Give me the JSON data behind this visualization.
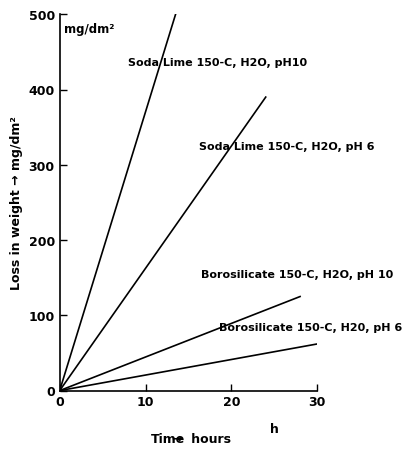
{
  "ylabel": "Loss in weight → mg/dm²",
  "ylabel_unit_label": "mg/dm²",
  "xlabel_h": "h",
  "xlim": [
    0,
    30
  ],
  "ylim": [
    0,
    500
  ],
  "xticks": [
    0,
    10,
    20,
    30
  ],
  "yticks": [
    0,
    100,
    200,
    300,
    400,
    500
  ],
  "lines": [
    {
      "x": [
        0,
        13.5
      ],
      "y": [
        0,
        500
      ],
      "ann_x": 8.0,
      "ann_y": 430,
      "ann_text": "Soda Lime 150-C, H2O, pH10"
    },
    {
      "x": [
        0,
        24.0
      ],
      "y": [
        0,
        390
      ],
      "ann_x": 16.2,
      "ann_y": 318,
      "ann_text": "Soda Lime 150-C, H2O, pH 6"
    },
    {
      "x": [
        0,
        28.0
      ],
      "y": [
        0,
        125
      ],
      "ann_x": 16.5,
      "ann_y": 148,
      "ann_text": "Borosilicate 150-C, H2O, pH 10"
    },
    {
      "x": [
        0,
        30.0
      ],
      "y": [
        0,
        62
      ],
      "ann_x": 18.5,
      "ann_y": 78,
      "ann_text": "Borosilicate 150-C, H20, pH 6"
    }
  ],
  "background_color": "#ffffff",
  "line_color": "#000000",
  "font_color": "#000000",
  "fontsize_ann": 8.0,
  "fontsize_axis": 9.0,
  "fontsize_tick": 9.0,
  "fontsize_unit": 8.5
}
